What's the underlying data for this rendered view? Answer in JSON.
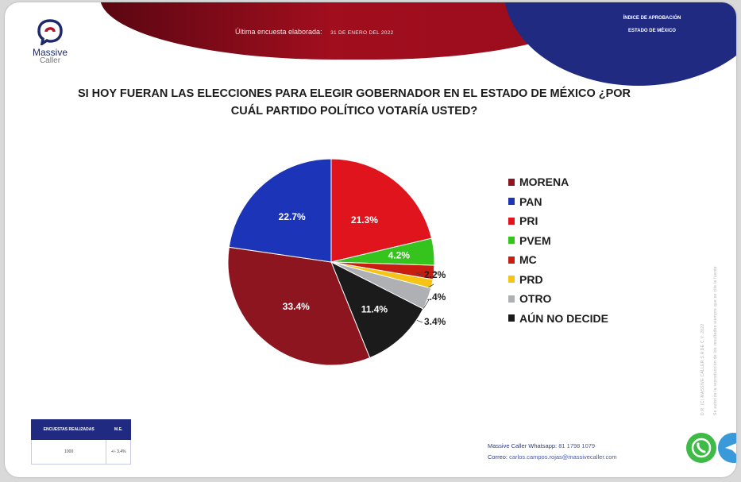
{
  "header": {
    "brand_name": "Massive",
    "brand_sub": "Caller",
    "banner_text": "Última encuesta elaborada:",
    "banner_date": "31 DE ENERO DEL 2022",
    "corner_line1": "ÍNDICE DE APROBACIÓN",
    "corner_line2": "ESTADO DE MÉXICO"
  },
  "colors": {
    "banner_red": "#a10e1e",
    "navy": "#1f2a80",
    "whatsapp": "#3dbb46",
    "telegram": "#3a9ad9"
  },
  "chart_data": {
    "type": "pie",
    "title": "SI HOY FUERAN LAS ELECCIONES PARA ELEGIR GOBERNADOR EN EL ESTADO DE MÉXICO ¿POR CUÁL PARTIDO POLÍTICO VOTARÍA USTED?",
    "title_line1": "SI HOY FUERAN LAS ELECCIONES PARA ELEGIR GOBERNADOR EN EL ESTADO DE MÉXICO ¿POR",
    "title_line2": "CUÁL PARTIDO POLÍTICO VOTARÍA USTED?",
    "legend_position": "right",
    "start_angle_deg": 0,
    "slices": [
      {
        "key": "pri",
        "label": "PRI",
        "value": 21.3,
        "display": "21.3%",
        "color": "#e0141c",
        "text_color": "#ffffff"
      },
      {
        "key": "pvem",
        "label": "PVEM",
        "value": 4.2,
        "display": "4.2%",
        "color": "#35c31d",
        "text_color": "#ffffff"
      },
      {
        "key": "mc",
        "label": "MC",
        "value": 2.2,
        "display": "2.2%",
        "color": "#c81e12",
        "text_color": "#222222"
      },
      {
        "key": "prd",
        "label": "PRD",
        "value": 1.4,
        "display": "1.4%",
        "color": "#f5c414",
        "text_color": "#222222"
      },
      {
        "key": "otro",
        "label": "OTRO",
        "value": 3.4,
        "display": "3.4%",
        "color": "#aeb0b3",
        "text_color": "#222222"
      },
      {
        "key": "aun",
        "label": "AÚN NO DECIDE",
        "value": 11.4,
        "display": "11.4%",
        "color": "#1b1b1b",
        "text_color": "#ffffff"
      },
      {
        "key": "morena",
        "label": "MORENA",
        "value": 33.4,
        "display": "33.4%",
        "color": "#8c1520",
        "text_color": "#ffffff"
      },
      {
        "key": "pan",
        "label": "PAN",
        "value": 22.7,
        "display": "22.7%",
        "color": "#1c34b8",
        "text_color": "#ffffff"
      }
    ],
    "legend_order": [
      "morena",
      "pan",
      "pri",
      "pvem",
      "mc",
      "prd",
      "otro",
      "aun"
    ]
  },
  "side_notes": {
    "line1": "D.R. (C) MASSIVE CALLER S.A DE C.V. 2022",
    "line2": "Se autoriza la reproducción de los resultados siempre que se cite la fuente"
  },
  "stats_table": {
    "headers": [
      "ENCUESTAS REALIZADAS",
      "M.E."
    ],
    "row": [
      "1000",
      "+/- 3.4%"
    ]
  },
  "contact": {
    "whatsapp_label": "Massive Caller Whatsapp:",
    "whatsapp_number": "81 1798 1079",
    "email_label": "Correo:",
    "email": "carlos.campos.rojas@massivecaller.com"
  }
}
